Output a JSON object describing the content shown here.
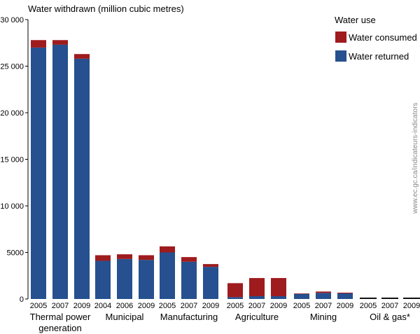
{
  "chart_data": {
    "type": "bar",
    "title": "Water withdrawn (million cubic metres)",
    "ylim": [
      0,
      30000
    ],
    "yticks": [
      0,
      5000,
      10000,
      15000,
      20000,
      25000,
      30000
    ],
    "ytick_labels": [
      "0",
      "5000",
      "10 000",
      "15 000",
      "20 000",
      "25 000",
      "30 000"
    ],
    "legend": {
      "title": "Water use",
      "position": "top-right",
      "entries": [
        {
          "label": "Water consumed",
          "color": "#9e1b1e"
        },
        {
          "label": "Water returned",
          "color": "#26508f"
        }
      ]
    },
    "colors": {
      "consumed": "#9e1b1e",
      "returned": "#26508f",
      "oil_gas": "#111111"
    },
    "groups": [
      {
        "label": [
          "Thermal power",
          "generation"
        ],
        "bars": [
          {
            "year": "2005",
            "returned": 27000,
            "consumed": 800
          },
          {
            "year": "2007",
            "returned": 27300,
            "consumed": 500
          },
          {
            "year": "2009",
            "returned": 25800,
            "consumed": 500
          }
        ]
      },
      {
        "label": [
          "Municipal"
        ],
        "bars": [
          {
            "year": "2004",
            "returned": 4100,
            "consumed": 600
          },
          {
            "year": "2006",
            "returned": 4300,
            "consumed": 500
          },
          {
            "year": "2009",
            "returned": 4200,
            "consumed": 500
          }
        ]
      },
      {
        "label": [
          "Manufacturing"
        ],
        "bars": [
          {
            "year": "2005",
            "returned": 5000,
            "consumed": 650
          },
          {
            "year": "2007",
            "returned": 4000,
            "consumed": 500
          },
          {
            "year": "2009",
            "returned": 3450,
            "consumed": 300
          }
        ]
      },
      {
        "label": [
          "Agriculture"
        ],
        "bars": [
          {
            "year": "2005",
            "returned": 200,
            "consumed": 1500
          },
          {
            "year": "2007",
            "returned": 300,
            "consumed": 1950
          },
          {
            "year": "2009",
            "returned": 300,
            "consumed": 1950
          }
        ]
      },
      {
        "label": [
          "Mining"
        ],
        "bars": [
          {
            "year": "2005",
            "returned": 550,
            "consumed": 50
          },
          {
            "year": "2007",
            "returned": 650,
            "consumed": 150
          },
          {
            "year": "2009",
            "returned": 600,
            "consumed": 80
          }
        ]
      },
      {
        "label": [
          "Oil & gas*"
        ],
        "bars": [
          {
            "year": "2005",
            "total": 150
          },
          {
            "year": "2007",
            "total": 150
          },
          {
            "year": "2009",
            "total": 150
          }
        ]
      }
    ]
  },
  "watermark": "www.ec.gc.ca/indicateurs-indicators"
}
